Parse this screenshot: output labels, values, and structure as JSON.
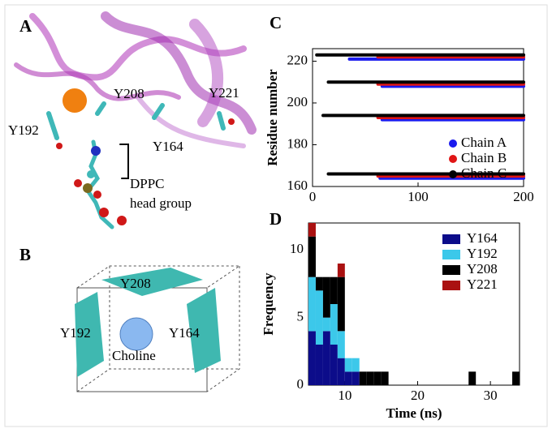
{
  "panel_labels": [
    "A",
    "B",
    "C",
    "D"
  ],
  "panel_a": {
    "residues": [
      "Y192",
      "Y208",
      "Y221",
      "Y164"
    ],
    "lipid_label": [
      "DPPC",
      "head group"
    ]
  },
  "panel_b": {
    "residues": [
      "Y208",
      "Y192",
      "Y164"
    ],
    "center": "Choline"
  },
  "chart_data": [
    {
      "type": "timeline",
      "ylabel": "Residue number",
      "xlim": [
        0,
        200
      ],
      "ylim": [
        160,
        226
      ],
      "xticks": [
        0,
        100,
        200
      ],
      "yticks": [
        160,
        180,
        200,
        220
      ],
      "legend": "lower right",
      "series": [
        {
          "name": "Chain A",
          "color": "#1a1aee",
          "segments": [
            {
              "y": 221,
              "x": [
                35,
                200
              ]
            },
            {
              "y": 208,
              "x": [
                66,
                200
              ]
            },
            {
              "y": 192,
              "x": [
                66,
                200
              ]
            },
            {
              "y": 164,
              "x": [
                64,
                200
              ]
            }
          ]
        },
        {
          "name": "Chain B",
          "color": "#e01515",
          "segments": [
            {
              "y": 222,
              "x": [
                62,
                200
              ]
            },
            {
              "y": 209,
              "x": [
                62,
                200
              ]
            },
            {
              "y": 193,
              "x": [
                62,
                200
              ]
            },
            {
              "y": 165,
              "x": [
                62,
                200
              ]
            }
          ]
        },
        {
          "name": "Chain C",
          "color": "#000000",
          "segments": [
            {
              "y": 223,
              "x": [
                4,
                200
              ]
            },
            {
              "y": 210,
              "x": [
                15,
                200
              ]
            },
            {
              "y": 194,
              "x": [
                10,
                200
              ]
            },
            {
              "y": 166,
              "x": [
                15,
                200
              ]
            }
          ]
        }
      ]
    },
    {
      "type": "histogram",
      "xlabel": "Time (ns)",
      "ylabel": "Frequency",
      "stacked": true,
      "bins": [
        5,
        6,
        7,
        8,
        9,
        10,
        11,
        12,
        13,
        14,
        15,
        16,
        17,
        18,
        19,
        20,
        21,
        22,
        23,
        24,
        25,
        26,
        27,
        28,
        29,
        30,
        31,
        32,
        33,
        34
      ],
      "xlim": [
        5,
        34
      ],
      "ylim": [
        0,
        12
      ],
      "xticks": [
        10,
        20,
        30
      ],
      "yticks": [
        0,
        5,
        10
      ],
      "legend": "upper right",
      "series": [
        {
          "name": "Y164",
          "color": "#0c0c8a",
          "values": [
            4,
            3,
            4,
            3,
            2,
            1,
            1,
            0,
            0,
            0,
            0,
            0,
            0,
            0,
            0,
            0,
            0,
            0,
            0,
            0,
            0,
            0,
            0,
            0,
            0,
            0,
            0,
            0,
            0
          ]
        },
        {
          "name": "Y192",
          "color": "#3cc8ea",
          "values": [
            4,
            4,
            1,
            3,
            2,
            1,
            1,
            0,
            0,
            0,
            0,
            0,
            0,
            0,
            0,
            0,
            0,
            0,
            0,
            0,
            0,
            0,
            0,
            0,
            0,
            0,
            0,
            0,
            0
          ]
        },
        {
          "name": "Y208",
          "color": "#000000",
          "values": [
            3,
            1,
            3,
            2,
            4,
            0,
            0,
            1,
            1,
            1,
            1,
            0,
            0,
            0,
            0,
            0,
            0,
            0,
            0,
            0,
            0,
            0,
            1,
            0,
            0,
            0,
            0,
            0,
            1
          ]
        },
        {
          "name": "Y221",
          "color": "#aa1111",
          "values": [
            1,
            0,
            0,
            0,
            1,
            0,
            0,
            0,
            0,
            0,
            0,
            0,
            0,
            0,
            0,
            0,
            0,
            0,
            0,
            0,
            0,
            0,
            0,
            0,
            0,
            0,
            0,
            0,
            0
          ]
        }
      ]
    }
  ]
}
